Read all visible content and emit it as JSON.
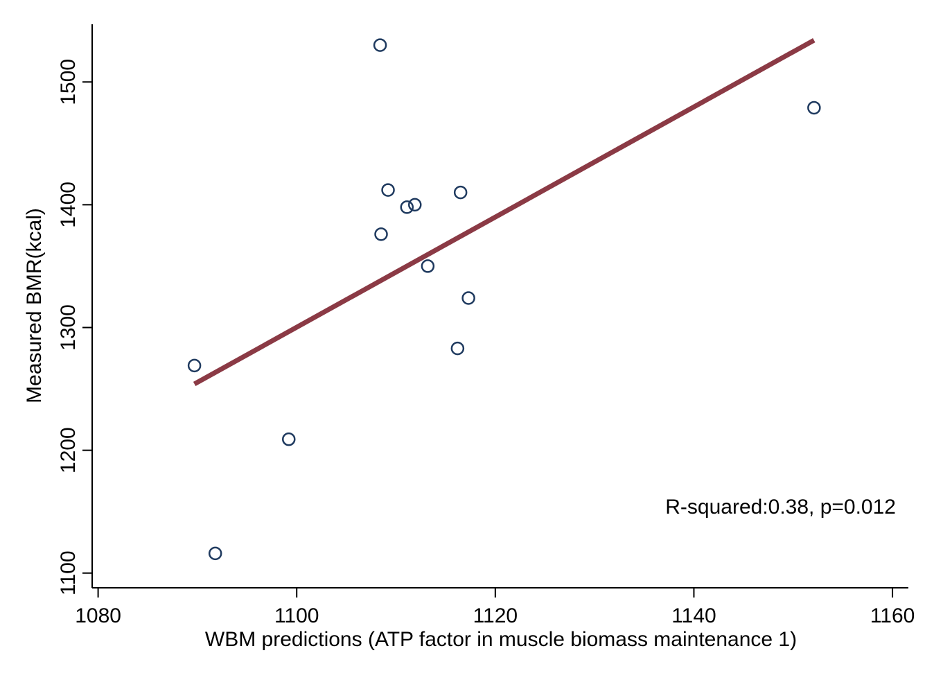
{
  "chart_data": {
    "type": "scatter",
    "title": "",
    "xlabel": "WBM predictions (ATP factor in muscle biomass maintenance 1)",
    "ylabel": "Measured BMR(kcal)",
    "xlim": [
      1079.4,
      1161.6
    ],
    "ylim": [
      1088,
      1547
    ],
    "xticks": [
      1080,
      1100,
      1120,
      1140,
      1160
    ],
    "yticks": [
      1100,
      1200,
      1300,
      1400,
      1500
    ],
    "grid": false,
    "legend": "none",
    "annotation": "R-squared:0.38, p=0.012",
    "colors": {
      "points": "#1f3a5f",
      "fit_line": "#8b3a45"
    },
    "series": [
      {
        "type": "scatter",
        "x": [
          1089.7,
          1091.8,
          1099.2,
          1108.4,
          1108.5,
          1109.2,
          1111.1,
          1111.9,
          1113.2,
          1116.2,
          1116.5,
          1117.3,
          1152.1
        ],
        "y": [
          1269,
          1116,
          1209,
          1530,
          1376,
          1412,
          1398,
          1400,
          1350,
          1283,
          1410,
          1324,
          1479
        ]
      },
      {
        "type": "line",
        "x": [
          1089.7,
          1152.1
        ],
        "y": [
          1254,
          1534
        ]
      }
    ]
  }
}
